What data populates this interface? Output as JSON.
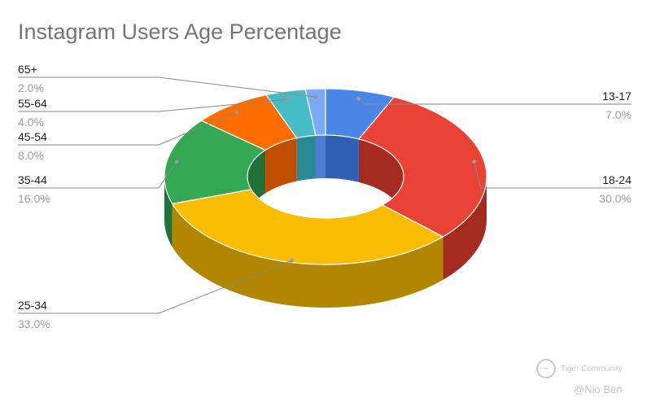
{
  "chart_data": {
    "type": "pie",
    "variant": "3d-donut",
    "title": "Instagram Users Age Percentage",
    "slices": [
      {
        "label": "13-17",
        "value_label": "7.0%",
        "value": 7.0,
        "color": "#4a86e8",
        "side_color": "#2f5fb3",
        "label_side": "right"
      },
      {
        "label": "18-24",
        "value_label": "30.0%",
        "value": 30.0,
        "color": "#ea4335",
        "side_color": "#a52a20",
        "label_side": "right"
      },
      {
        "label": "25-34",
        "value_label": "33.0%",
        "value": 33.0,
        "color": "#fbbc04",
        "side_color": "#b38600",
        "label_side": "left"
      },
      {
        "label": "35-44",
        "value_label": "16.0%",
        "value": 16.0,
        "color": "#34a853",
        "side_color": "#21713a",
        "label_side": "left"
      },
      {
        "label": "45-54",
        "value_label": "8.0%",
        "value": 8.0,
        "color": "#ff6d01",
        "side_color": "#c04e00",
        "label_side": "left"
      },
      {
        "label": "55-64",
        "value_label": "4.0%",
        "value": 4.0,
        "color": "#46bdc6",
        "side_color": "#2a8a92",
        "label_side": "left"
      },
      {
        "label": "65+",
        "value_label": "2.0%",
        "value": 2.0,
        "color": "#7baaf7",
        "side_color": "#4d7fd0",
        "label_side": "left"
      }
    ],
    "legend": "none"
  },
  "watermark": {
    "community": "Tiger Community",
    "author": "@Nio Ben"
  }
}
